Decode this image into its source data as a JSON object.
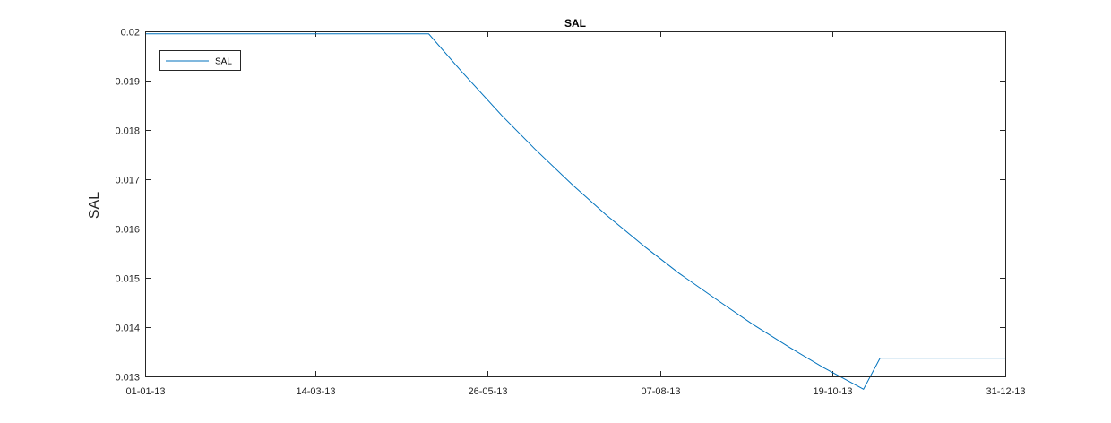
{
  "chart_data": {
    "type": "line",
    "title": "SAL",
    "xlabel": "",
    "ylabel": "SAL",
    "x_tick_labels": [
      "01-01-13",
      "14-03-13",
      "26-05-13",
      "07-08-13",
      "19-10-13",
      "31-12-13"
    ],
    "x_ticks": [
      "2013-01-01",
      "2013-03-14",
      "2013-05-26",
      "2013-08-07",
      "2013-10-19",
      "2013-12-31"
    ],
    "xlim": [
      "2013-01-01",
      "2013-12-31"
    ],
    "y_tick_labels": [
      "0.013",
      "0.014",
      "0.015",
      "0.016",
      "0.017",
      "0.018",
      "0.019",
      "0.02"
    ],
    "y_ticks": [
      0.013,
      0.014,
      0.015,
      0.016,
      0.017,
      0.018,
      0.019,
      0.02
    ],
    "ylim": [
      0.013,
      0.02
    ],
    "grid": false,
    "legend_position": "top-left",
    "series": [
      {
        "name": "SAL",
        "color": "#0072BD",
        "x": [
          "2013-01-01",
          "2013-05-01",
          "2013-05-15",
          "2013-06-01",
          "2013-06-15",
          "2013-07-01",
          "2013-07-15",
          "2013-08-01",
          "2013-08-15",
          "2013-09-01",
          "2013-09-15",
          "2013-10-01",
          "2013-10-15",
          "2013-11-01",
          "2013-11-08",
          "2013-12-31"
        ],
        "y": [
          0.01995,
          0.01995,
          0.01918,
          0.01829,
          0.01761,
          0.01688,
          0.01628,
          0.01561,
          0.01509,
          0.01452,
          0.01406,
          0.01358,
          0.01318,
          0.01274,
          0.01337,
          0.01337
        ]
      }
    ]
  }
}
